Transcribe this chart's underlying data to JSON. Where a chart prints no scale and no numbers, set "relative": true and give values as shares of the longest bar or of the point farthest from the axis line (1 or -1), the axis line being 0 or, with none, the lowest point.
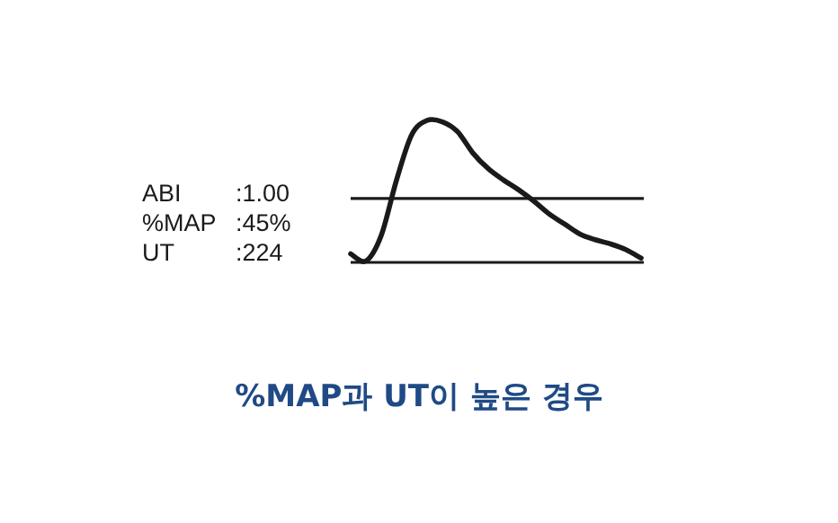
{
  "chart_data": {
    "type": "line",
    "relative": true,
    "title": "%MAP과 UT이 높은 경우",
    "annotations": [
      "ABI :1.00",
      "%MAP :45%",
      "UT :224"
    ],
    "categories": [
      null,
      null,
      null,
      null,
      null,
      null,
      null,
      null,
      null,
      null,
      null,
      null,
      null,
      null,
      null,
      null,
      null,
      null,
      null,
      null
    ],
    "series": [
      {
        "color": "#1a1a1a",
        "values": [
          0.06,
          0.01,
          0.19,
          0.58,
          0.9,
          1.0,
          0.99,
          0.92,
          0.77,
          0.66,
          0.58,
          0.51,
          0.43,
          0.34,
          0.27,
          0.2,
          0.16,
          0.13,
          0.09,
          0.03
        ]
      }
    ],
    "ref_lines": [
      {
        "axis": "y",
        "value": 0.45,
        "color": "#1a1a1a"
      }
    ]
  }
}
